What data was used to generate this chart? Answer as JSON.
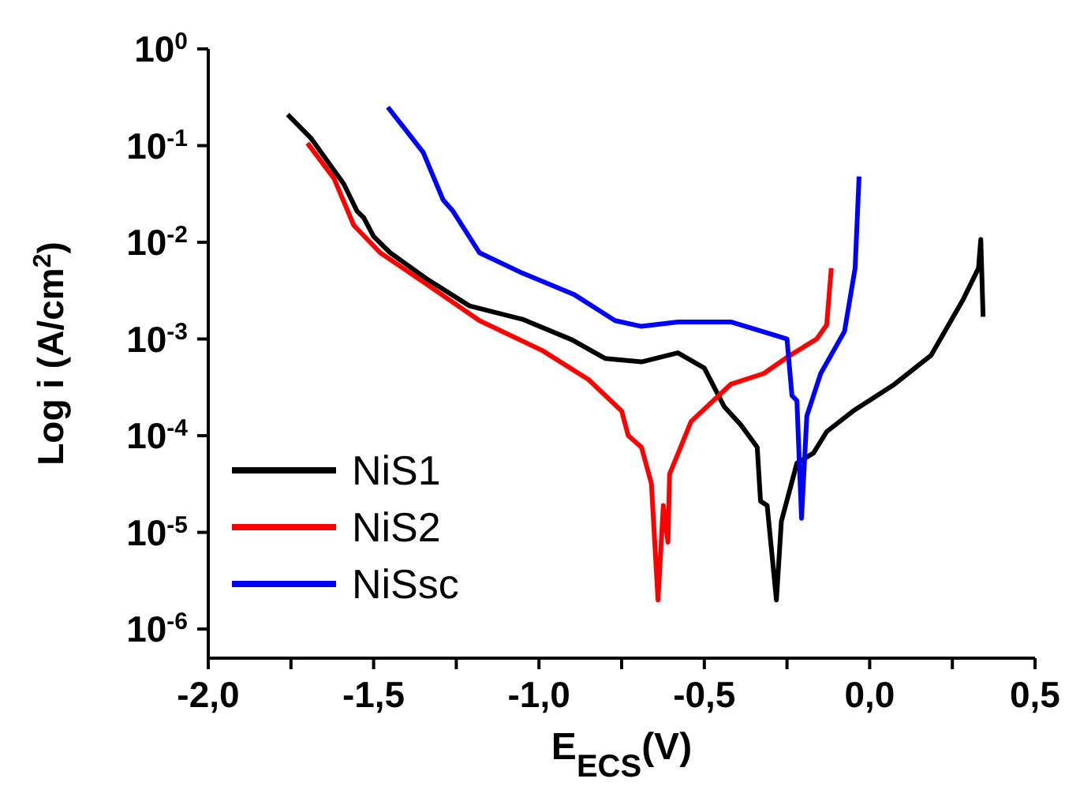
{
  "chart_data": {
    "type": "line",
    "xlabel": "E$_{ECS}$(V)",
    "ylabel": "Log i (A/cm$^{2}$)",
    "log": "y",
    "legend": "bottom left",
    "xlim": [
      -2,
      0.5
    ],
    "xticks": [
      {
        "value": -2,
        "label": "-2,0"
      },
      {
        "value": -1.75,
        "label": null
      },
      {
        "value": -1.5,
        "label": "-1,5"
      },
      {
        "value": -1.25,
        "label": null
      },
      {
        "value": -1,
        "label": "-1,0"
      },
      {
        "value": -0.75,
        "label": null
      },
      {
        "value": -0.5,
        "label": "-0,5"
      },
      {
        "value": -0.25,
        "label": null
      },
      {
        "value": 0,
        "label": "0,0"
      },
      {
        "value": 0.25,
        "label": null
      },
      {
        "value": 0.5,
        "label": "0,5"
      }
    ],
    "ylim": [
      5e-07,
      1
    ],
    "yticks": [
      {
        "value": 1e-06,
        "label": "10$^{-6}$"
      },
      {
        "value": 1e-05,
        "label": "10$^{-5}$"
      },
      {
        "value": 0.0001,
        "label": "10$^{-4}$"
      },
      {
        "value": 0.001,
        "label": "10$^{-3}$"
      },
      {
        "value": 0.01,
        "label": "10$^{-2}$"
      },
      {
        "value": 0.1,
        "label": "10$^{-1}$"
      },
      {
        "value": 1,
        "label": "10$^{0}$"
      }
    ],
    "series": [
      {
        "name": "NiS1",
        "color": "#000000",
        "x": [
          -1.76,
          -1.69,
          -1.59,
          -1.55,
          -1.53,
          -1.5,
          -1.45,
          -1.34,
          -1.21,
          -1.05,
          -0.9,
          -0.8,
          -0.69,
          -0.58,
          -0.5,
          -0.44,
          -0.39,
          -0.34,
          -0.33,
          -0.31,
          -0.282,
          -0.267,
          -0.22,
          -0.17,
          -0.13,
          -0.05,
          0.075,
          0.186,
          0.281,
          0.329,
          0.336,
          0.343
        ],
        "values": [
          0.21,
          0.12,
          0.04,
          0.021,
          0.018,
          0.0115,
          0.0078,
          0.0042,
          0.0022,
          0.0016,
          0.00098,
          0.00063,
          0.00058,
          0.00072,
          0.0005,
          0.0002,
          0.00013,
          7.6e-05,
          2.1e-05,
          1.9e-05,
          2e-06,
          1.3e-05,
          5.2e-05,
          6.6e-05,
          0.00011,
          0.00018,
          0.00034,
          0.00068,
          0.0025,
          0.0054,
          0.0107,
          0.0017
        ]
      },
      {
        "name": "NiS2",
        "color": "#ff0000",
        "x": [
          -1.7,
          -1.62,
          -1.56,
          -1.48,
          -1.34,
          -1.18,
          -0.99,
          -0.85,
          -0.75,
          -0.73,
          -0.69,
          -0.66,
          -0.64,
          -0.624,
          -0.61,
          -0.605,
          -0.54,
          -0.42,
          -0.32,
          -0.24,
          -0.16,
          -0.13,
          -0.116
        ],
        "values": [
          0.106,
          0.046,
          0.015,
          0.0078,
          0.0037,
          0.00155,
          0.00076,
          0.00038,
          0.00018,
          0.0001,
          7.6e-05,
          3.2e-05,
          2e-06,
          1.9e-05,
          7.9e-06,
          4e-05,
          0.00014,
          0.00034,
          0.00044,
          0.00068,
          0.001,
          0.0014,
          0.0054
        ]
      },
      {
        "name": "NiSsc",
        "color": "#0000ff",
        "x": [
          -1.457,
          -1.35,
          -1.29,
          -1.26,
          -1.18,
          -1.05,
          -0.895,
          -0.77,
          -0.69,
          -0.58,
          -0.42,
          -0.29,
          -0.25,
          -0.235,
          -0.22,
          -0.206,
          -0.19,
          -0.148,
          -0.076,
          -0.044,
          -0.032
        ],
        "values": [
          0.25,
          0.085,
          0.0275,
          0.021,
          0.0078,
          0.0048,
          0.0029,
          0.00155,
          0.00135,
          0.0015,
          0.0015,
          0.0011,
          0.001,
          0.00026,
          0.00023,
          1.4e-05,
          0.00016,
          0.00044,
          0.0012,
          0.0054,
          0.048
        ]
      }
    ]
  }
}
